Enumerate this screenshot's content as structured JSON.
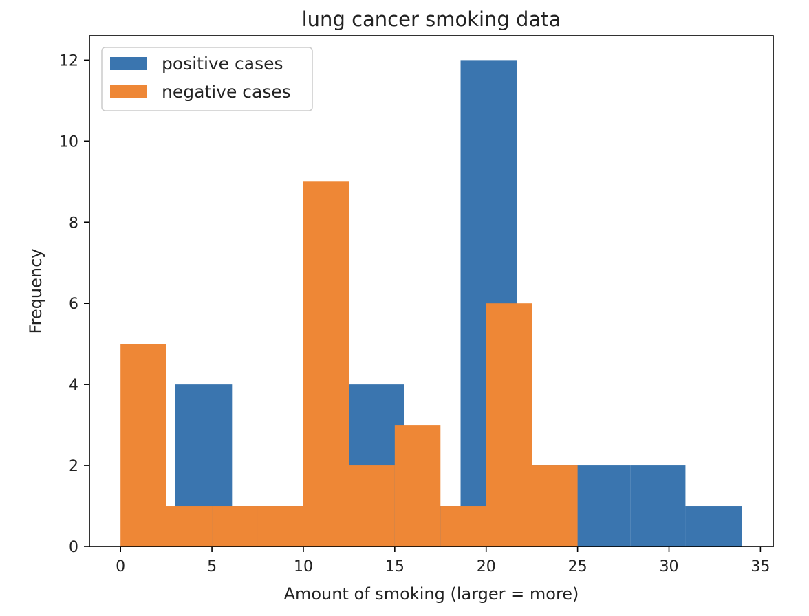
{
  "chart_data": {
    "type": "bar",
    "title": "lung cancer smoking data",
    "xlabel": "Amount of smoking (larger = more)",
    "ylabel": "Frequency",
    "xlim": [
      -1.7,
      35.7
    ],
    "ylim": [
      0,
      12.6
    ],
    "xticks": [
      0,
      5,
      10,
      15,
      20,
      25,
      30,
      35
    ],
    "yticks": [
      0,
      2,
      4,
      6,
      8,
      10,
      12
    ],
    "grid": false,
    "legend_position": "top-left",
    "series": [
      {
        "name": "positive cases",
        "color": "#3a75af",
        "bins": [
          {
            "x0": 3.0,
            "x1": 6.1,
            "value": 4
          },
          {
            "x0": 6.1,
            "x1": 9.2,
            "value": 1
          },
          {
            "x0": 9.2,
            "x1": 12.4,
            "value": 1
          },
          {
            "x0": 12.4,
            "x1": 15.5,
            "value": 4
          },
          {
            "x0": 15.5,
            "x1": 18.6,
            "value": 1
          },
          {
            "x0": 18.6,
            "x1": 21.7,
            "value": 12
          },
          {
            "x0": 21.7,
            "x1": 24.8,
            "value": 2
          },
          {
            "x0": 24.8,
            "x1": 27.9,
            "value": 2
          },
          {
            "x0": 27.9,
            "x1": 30.9,
            "value": 2
          },
          {
            "x0": 30.9,
            "x1": 34.0,
            "value": 1
          }
        ]
      },
      {
        "name": "negative cases",
        "color": "#ee8736",
        "bins": [
          {
            "x0": 0.0,
            "x1": 2.5,
            "value": 5
          },
          {
            "x0": 2.5,
            "x1": 5.0,
            "value": 1
          },
          {
            "x0": 5.0,
            "x1": 7.5,
            "value": 1
          },
          {
            "x0": 7.5,
            "x1": 10.0,
            "value": 1
          },
          {
            "x0": 10.0,
            "x1": 12.5,
            "value": 9
          },
          {
            "x0": 12.5,
            "x1": 15.0,
            "value": 2
          },
          {
            "x0": 15.0,
            "x1": 17.5,
            "value": 3
          },
          {
            "x0": 17.5,
            "x1": 20.0,
            "value": 1
          },
          {
            "x0": 20.0,
            "x1": 22.5,
            "value": 6
          },
          {
            "x0": 22.5,
            "x1": 25.0,
            "value": 2
          }
        ]
      }
    ]
  }
}
